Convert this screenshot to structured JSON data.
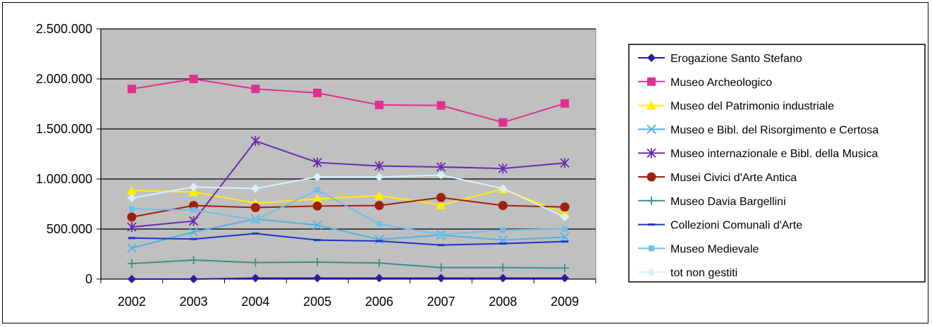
{
  "chart_data": {
    "type": "line",
    "title": "",
    "xlabel": "",
    "ylabel": "",
    "categories": [
      "2002",
      "2003",
      "2004",
      "2005",
      "2006",
      "2007",
      "2008",
      "2009"
    ],
    "ylim": [
      0,
      2500000
    ],
    "yticks": [
      0,
      500000,
      1000000,
      1500000,
      2000000,
      2500000
    ],
    "ytick_labels": [
      "0",
      "500.000",
      "1.000.000",
      "1.500.000",
      "2.000.000",
      "2.500.000"
    ],
    "grid": true,
    "plot_background": "#c0c0c0",
    "legend_position": "right",
    "series": [
      {
        "name": "Erogazione Santo Stefano",
        "color": "#1f1fa8",
        "marker": "diamond",
        "values": [
          0,
          0,
          10000,
          10000,
          10000,
          10000,
          10000,
          10000
        ]
      },
      {
        "name": "Museo Archeologico",
        "color": "#e0308f",
        "marker": "square",
        "values": [
          1900000,
          2000000,
          1900000,
          1860000,
          1740000,
          1735000,
          1565000,
          1755000
        ]
      },
      {
        "name": "Museo del Patrimonio industriale",
        "color": "#ffee00",
        "marker": "triangle",
        "values": [
          885000,
          870000,
          760000,
          800000,
          835000,
          740000,
          900000,
          655000
        ]
      },
      {
        "name": "Museo e Bibl. del Risorgimento e Certosa",
        "color": "#4fb3e6",
        "marker": "x",
        "values": [
          310000,
          470000,
          600000,
          540000,
          395000,
          440000,
          390000,
          420000
        ]
      },
      {
        "name": "Museo internazionale e Bibl. della Musica",
        "color": "#6a2ab0",
        "marker": "star",
        "values": [
          520000,
          580000,
          1380000,
          1165000,
          1130000,
          1120000,
          1105000,
          1160000
        ]
      },
      {
        "name": "Musei Civici d'Arte Antica",
        "color": "#a01f0f",
        "marker": "circle",
        "values": [
          620000,
          735000,
          715000,
          730000,
          735000,
          815000,
          735000,
          720000
        ]
      },
      {
        "name": "Museo Davia Bargellini",
        "color": "#3e8d8d",
        "marker": "plus",
        "values": [
          155000,
          190000,
          165000,
          170000,
          160000,
          115000,
          115000,
          110000
        ]
      },
      {
        "name": "Collezioni Comunali d'Arte",
        "color": "#1c34c8",
        "marker": "dash",
        "values": [
          410000,
          400000,
          455000,
          390000,
          380000,
          340000,
          355000,
          375000
        ]
      },
      {
        "name": "Museo Medievale",
        "color": "#70c0ea",
        "marker": "smallsquare",
        "values": [
          700000,
          690000,
          590000,
          890000,
          550000,
          445000,
          490000,
          500000
        ]
      },
      {
        "name": "tot non gestiti",
        "color": "#d6f2ff",
        "marker": "diamond",
        "values": [
          810000,
          920000,
          905000,
          1020000,
          1020000,
          1040000,
          905000,
          620000
        ]
      }
    ]
  }
}
